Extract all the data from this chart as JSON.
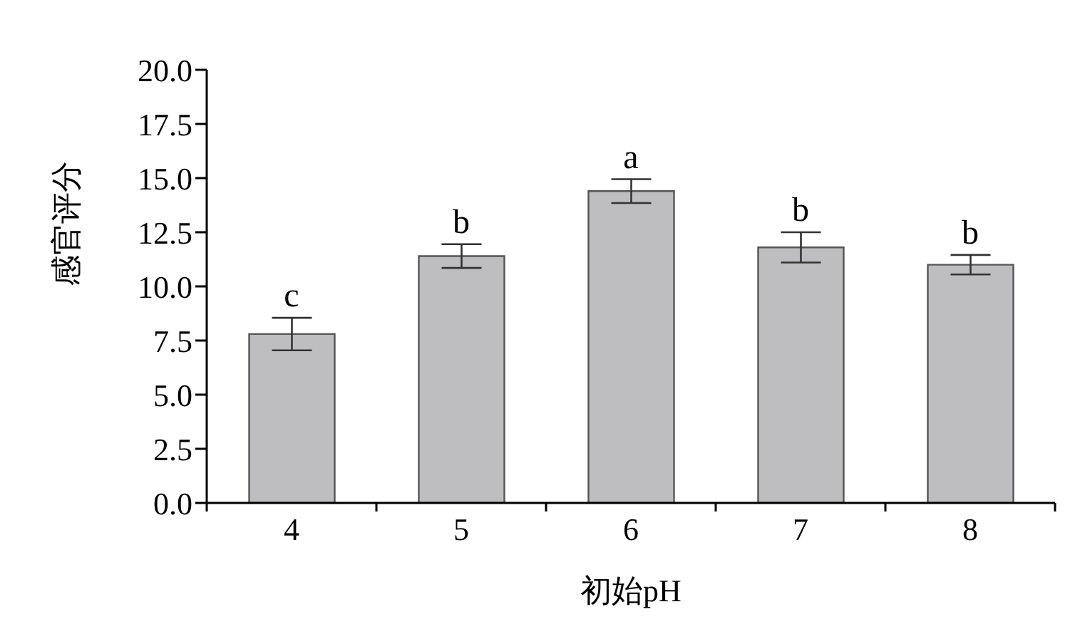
{
  "chart_data": {
    "type": "bar",
    "xlabel": "初始pH",
    "ylabel": "感官评分",
    "categories": [
      "4",
      "5",
      "6",
      "7",
      "8"
    ],
    "values": [
      7.8,
      11.4,
      14.4,
      11.8,
      11.0
    ],
    "errors": [
      0.75,
      0.55,
      0.55,
      0.7,
      0.45
    ],
    "color": "#bebec0",
    "ylim": [
      0,
      20
    ],
    "yticks": [
      {
        "value": 0,
        "label": "0.0"
      },
      {
        "value": 2.5,
        "label": "2.5"
      },
      {
        "value": 5,
        "label": "5.0"
      },
      {
        "value": 7.5,
        "label": "7.5"
      },
      {
        "value": 10,
        "label": "10.0"
      },
      {
        "value": 12.5,
        "label": "12.5"
      },
      {
        "value": 15,
        "label": "15.0"
      },
      {
        "value": 17.5,
        "label": "17.5"
      },
      {
        "value": 20,
        "label": "20.0"
      }
    ],
    "annotations": [
      {
        "text": "c",
        "x": "4",
        "y": 8.55
      },
      {
        "text": "b",
        "x": "5",
        "y": 11.95
      },
      {
        "text": "a",
        "x": "6",
        "y": 14.95
      },
      {
        "text": "b",
        "x": "7",
        "y": 12.5
      },
      {
        "text": "b",
        "x": "8",
        "y": 11.45
      }
    ],
    "grid": false,
    "legend": false
  }
}
